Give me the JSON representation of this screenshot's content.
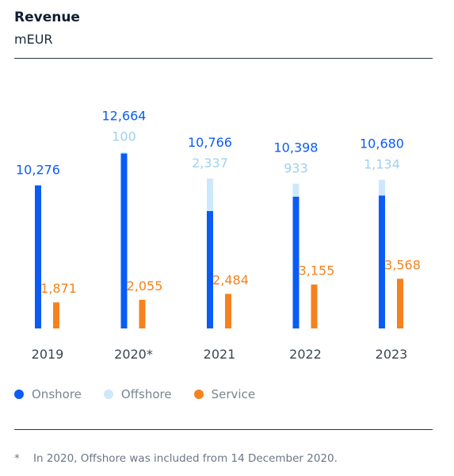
{
  "header": {
    "title": "Revenue",
    "unit": "mEUR"
  },
  "colors": {
    "onshore": "#0a5cf5",
    "offshore": "#cde8fb",
    "service": "#f5821f",
    "offshore_label": "#9fd1f0"
  },
  "chart_data": {
    "type": "bar",
    "categories": [
      "2019",
      "2020*",
      "2021",
      "2022",
      "2023"
    ],
    "series": [
      {
        "name": "Onshore",
        "values": [
          10276,
          12564,
          8429,
          9465,
          9546
        ],
        "stack": "wind"
      },
      {
        "name": "Offshore",
        "values": [
          0,
          100,
          2337,
          933,
          1134
        ],
        "stack": "wind"
      },
      {
        "name": "Service",
        "values": [
          1871,
          2055,
          2484,
          3155,
          3568
        ],
        "stack": "service"
      }
    ],
    "labels": {
      "totals": [
        "10,276",
        "12,664",
        "10,766",
        "10,398",
        "10,680"
      ],
      "offshore": [
        "",
        "100",
        "2,337",
        "933",
        "1,134"
      ],
      "service": [
        "1,871",
        "2,055",
        "2,484",
        "3,155",
        "3,568"
      ]
    },
    "ylim": [
      0,
      13500
    ],
    "grid": false,
    "legend_position": "bottom-left"
  },
  "legend": [
    {
      "label": "Onshore",
      "color_key": "onshore"
    },
    {
      "label": "Offshore",
      "color_key": "offshore"
    },
    {
      "label": "Service",
      "color_key": "service"
    }
  ],
  "footnote": {
    "mark": "*",
    "text": "In 2020, Offshore was included from 14 December 2020."
  }
}
